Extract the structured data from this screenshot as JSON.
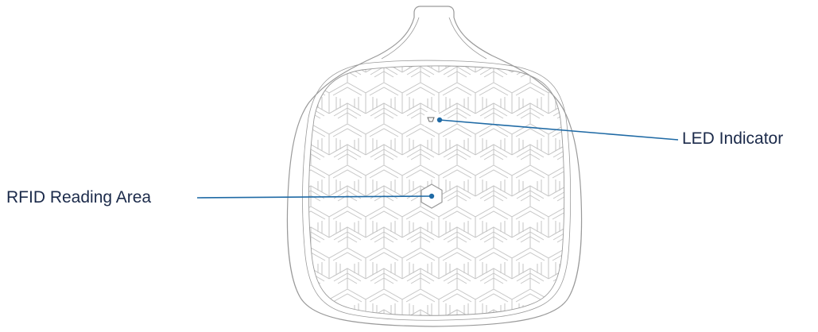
{
  "callouts": {
    "led_indicator": "LED Indicator",
    "rfid_reading_area": "RFID Reading Area"
  },
  "colors": {
    "callout_line": "#1f6aa5",
    "callout_text": "#1b2a4a",
    "device_outline": "#9a9a9a",
    "pattern": "#c6c6c6"
  }
}
